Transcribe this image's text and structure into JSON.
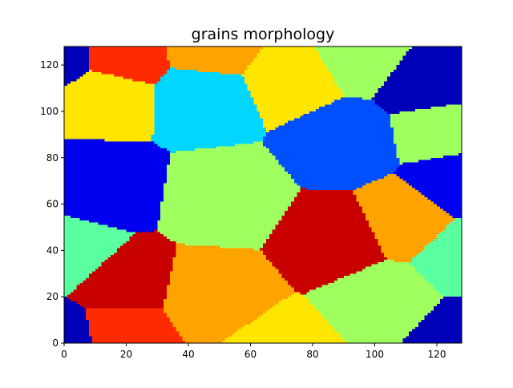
{
  "chart_data": {
    "type": "heatmap",
    "title": "grains morphology",
    "xlabel": "",
    "ylabel": "",
    "xlim": [
      0,
      128
    ],
    "ylim": [
      0,
      128
    ],
    "x_ticks": [
      0,
      20,
      40,
      60,
      80,
      100,
      120
    ],
    "y_ticks": [
      0,
      20,
      40,
      60,
      80,
      100,
      120
    ],
    "grid": false,
    "legend": "none",
    "grid_size": 128,
    "palette": {
      "navy": "#0000b8",
      "blue": "#0000f0",
      "royal": "#0050ff",
      "cyan": "#00d6ff",
      "mint": "#5affa0",
      "green": "#9eff5e",
      "yellow": "#ffe600",
      "orange": "#ffa300",
      "red_orange": "#ff2a00",
      "red": "#c80000"
    },
    "grains": [
      {
        "id": 1,
        "color": "blue",
        "center": [
          12,
          68
        ]
      },
      {
        "id": 2,
        "color": "yellow",
        "center": [
          13,
          107
        ]
      },
      {
        "id": 3,
        "color": "red_orange",
        "center": [
          18,
          124
        ]
      },
      {
        "id": 4,
        "color": "cyan",
        "center": [
          45,
          106
        ]
      },
      {
        "id": 5,
        "color": "orange",
        "center": [
          48,
          128
        ]
      },
      {
        "id": 6,
        "color": "yellow",
        "center": [
          73,
          115
        ]
      },
      {
        "id": 7,
        "color": "green",
        "center": [
          95,
          125
        ]
      },
      {
        "id": 8,
        "color": "navy",
        "center": [
          118,
          112
        ]
      },
      {
        "id": 9,
        "color": "royal",
        "center": [
          90,
          87
        ]
      },
      {
        "id": 10,
        "color": "green",
        "center": [
          122,
          92
        ]
      },
      {
        "id": 11,
        "color": "blue",
        "center": [
          127,
          70
        ]
      },
      {
        "id": 12,
        "color": "green",
        "center": [
          52,
          63
        ]
      },
      {
        "id": 13,
        "color": "orange",
        "center": [
          110,
          53
        ]
      },
      {
        "id": 14,
        "color": "red",
        "center": [
          88,
          45
        ]
      },
      {
        "id": 15,
        "color": "mint",
        "center": [
          2,
          38
        ]
      },
      {
        "id": 16,
        "color": "red",
        "center": [
          18,
          25
        ]
      },
      {
        "id": 17,
        "color": "orange",
        "center": [
          48,
          20
        ]
      },
      {
        "id": 18,
        "color": "green",
        "center": [
          103,
          18
        ]
      },
      {
        "id": 19,
        "color": "mint",
        "center": [
          129,
          38
        ]
      },
      {
        "id": 20,
        "color": "red_orange",
        "center": [
          18,
          5
        ]
      },
      {
        "id": 21,
        "color": "yellow",
        "center": [
          70,
          -4
        ]
      },
      {
        "id": 22,
        "color": "navy",
        "center": [
          127,
          1
        ]
      },
      {
        "id": 23,
        "color": "navy",
        "center": [
          -1,
          124
        ]
      },
      {
        "id": 24,
        "color": "navy",
        "center": [
          -1,
          2
        ]
      }
    ]
  }
}
